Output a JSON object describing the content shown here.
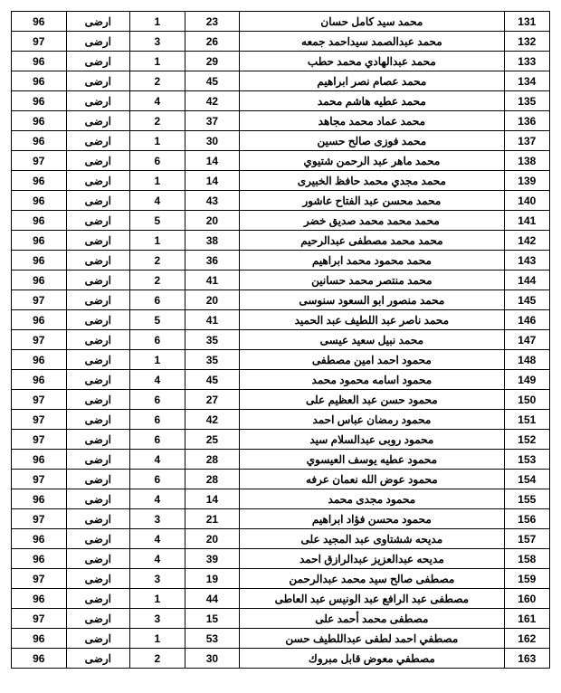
{
  "table": {
    "text_color": "#000000",
    "border_color": "#000000",
    "background": "#ffffff",
    "font_size": 12,
    "font_weight": "bold",
    "rows": [
      {
        "idx": "131",
        "name": "محمد سيد كامل حسان",
        "v1": "23",
        "v2": "1",
        "floor": "ارضى",
        "v3": "96"
      },
      {
        "idx": "132",
        "name": "محمد عبدالصمد سيداحمد جمعه",
        "v1": "26",
        "v2": "3",
        "floor": "ارضى",
        "v3": "97"
      },
      {
        "idx": "133",
        "name": "محمد عبدالهادي محمد حطب",
        "v1": "29",
        "v2": "1",
        "floor": "ارضى",
        "v3": "96"
      },
      {
        "idx": "134",
        "name": "محمد عصام نصر ابراهيم",
        "v1": "45",
        "v2": "2",
        "floor": "ارضى",
        "v3": "96"
      },
      {
        "idx": "135",
        "name": "محمد عطيه هاشم محمد",
        "v1": "42",
        "v2": "4",
        "floor": "ارضى",
        "v3": "96"
      },
      {
        "idx": "136",
        "name": "محمد عماد محمد مجاهد",
        "v1": "37",
        "v2": "2",
        "floor": "ارضى",
        "v3": "96"
      },
      {
        "idx": "137",
        "name": "محمد فوزى صالح حسين",
        "v1": "30",
        "v2": "1",
        "floor": "ارضى",
        "v3": "96"
      },
      {
        "idx": "138",
        "name": "محمد ماهر عبد الرحمن شتيوي",
        "v1": "14",
        "v2": "6",
        "floor": "ارضى",
        "v3": "97"
      },
      {
        "idx": "139",
        "name": "محمد مجدي محمد حافظ الخبيرى",
        "v1": "14",
        "v2": "1",
        "floor": "ارضى",
        "v3": "96"
      },
      {
        "idx": "140",
        "name": "محمد محسن عبد الفتاح عاشور",
        "v1": "43",
        "v2": "4",
        "floor": "ارضى",
        "v3": "96"
      },
      {
        "idx": "141",
        "name": "محمد محمد محمد صديق خضر",
        "v1": "20",
        "v2": "5",
        "floor": "ارضى",
        "v3": "96"
      },
      {
        "idx": "142",
        "name": "محمد محمد مصطفى عبدالرحيم",
        "v1": "38",
        "v2": "1",
        "floor": "ارضى",
        "v3": "96"
      },
      {
        "idx": "143",
        "name": "محمد محمود محمد ابراهيم",
        "v1": "36",
        "v2": "2",
        "floor": "ارضى",
        "v3": "96"
      },
      {
        "idx": "144",
        "name": "محمد منتصر محمد حسانين",
        "v1": "41",
        "v2": "2",
        "floor": "ارضى",
        "v3": "96"
      },
      {
        "idx": "145",
        "name": "محمد منصور ابو السعود سنوسى",
        "v1": "20",
        "v2": "6",
        "floor": "ارضى",
        "v3": "97"
      },
      {
        "idx": "146",
        "name": "محمد ناصر عبد اللطيف عبد الحميد",
        "v1": "41",
        "v2": "5",
        "floor": "ارضى",
        "v3": "96"
      },
      {
        "idx": "147",
        "name": "محمد نبيل سعيد عيسى",
        "v1": "35",
        "v2": "6",
        "floor": "ارضى",
        "v3": "97"
      },
      {
        "idx": "148",
        "name": "محمود احمد امين مصطفى",
        "v1": "35",
        "v2": "1",
        "floor": "ارضى",
        "v3": "96"
      },
      {
        "idx": "149",
        "name": "محمود اسامه محمود محمد",
        "v1": "45",
        "v2": "4",
        "floor": "ارضى",
        "v3": "96"
      },
      {
        "idx": "150",
        "name": "محمود حسن عبد العظيم على",
        "v1": "27",
        "v2": "6",
        "floor": "ارضى",
        "v3": "97"
      },
      {
        "idx": "151",
        "name": "محمود رمضان عباس احمد",
        "v1": "42",
        "v2": "6",
        "floor": "ارضى",
        "v3": "97"
      },
      {
        "idx": "152",
        "name": "محمود روبى عبدالسلام سيد",
        "v1": "25",
        "v2": "6",
        "floor": "ارضى",
        "v3": "97"
      },
      {
        "idx": "153",
        "name": "محمود عطيه يوسف العيسوي",
        "v1": "28",
        "v2": "4",
        "floor": "ارضى",
        "v3": "96"
      },
      {
        "idx": "154",
        "name": "محمود عوض الله نعمان عرفه",
        "v1": "28",
        "v2": "6",
        "floor": "ارضى",
        "v3": "97"
      },
      {
        "idx": "155",
        "name": "محمود مجدى محمد",
        "v1": "14",
        "v2": "4",
        "floor": "ارضى",
        "v3": "96"
      },
      {
        "idx": "156",
        "name": "محمود محسن فؤاد ابراهيم",
        "v1": "21",
        "v2": "3",
        "floor": "ارضى",
        "v3": "97"
      },
      {
        "idx": "157",
        "name": "مديحه ششتاوى عبد المجيد على",
        "v1": "20",
        "v2": "4",
        "floor": "ارضى",
        "v3": "96"
      },
      {
        "idx": "158",
        "name": "مديحه عبدالعزيز عبدالرازق احمد",
        "v1": "39",
        "v2": "4",
        "floor": "ارضى",
        "v3": "96"
      },
      {
        "idx": "159",
        "name": "مصطفى صالح سيد محمد عبدالرحمن",
        "v1": "19",
        "v2": "3",
        "floor": "ارضى",
        "v3": "97"
      },
      {
        "idx": "160",
        "name": "مصطفى عبد الرافع عبد الونيس عبد العاطى",
        "v1": "44",
        "v2": "1",
        "floor": "ارضى",
        "v3": "96"
      },
      {
        "idx": "161",
        "name": "مصطفى محمد أحمد على",
        "v1": "15",
        "v2": "3",
        "floor": "ارضى",
        "v3": "97"
      },
      {
        "idx": "162",
        "name": "مصطفي احمد لطفى عبداللطيف حسن",
        "v1": "53",
        "v2": "1",
        "floor": "ارضى",
        "v3": "96"
      },
      {
        "idx": "163",
        "name": "مصطفي معوض قابل مبروك",
        "v1": "30",
        "v2": "2",
        "floor": "ارضى",
        "v3": "96"
      }
    ]
  }
}
